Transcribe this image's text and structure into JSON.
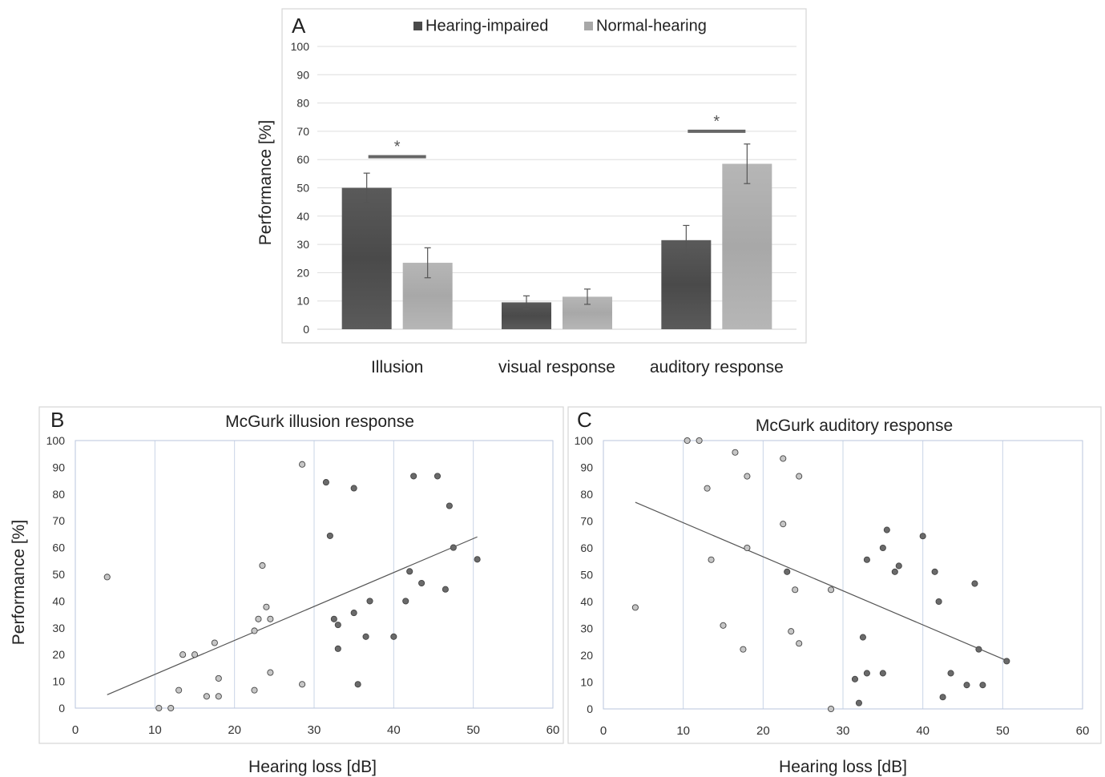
{
  "chart_data": [
    {
      "panel": "A",
      "type": "bar",
      "ylabel": "Performance [%]",
      "ylim": [
        0,
        100
      ],
      "yticks": [
        0,
        10,
        20,
        30,
        40,
        50,
        60,
        70,
        80,
        90,
        100
      ],
      "categories": [
        "Illusion",
        "visual response",
        "auditory response"
      ],
      "legend_position": "top",
      "series": [
        {
          "name": "Hearing-impaired",
          "color": "#4a4a4a",
          "values": [
            50,
            9.5,
            31.5
          ],
          "errors": [
            5.2,
            2.3,
            5.2
          ]
        },
        {
          "name": "Normal-hearing",
          "color": "#a8a8a8",
          "values": [
            23.5,
            11.5,
            58.5
          ],
          "errors": [
            5.3,
            2.7,
            7.0
          ]
        }
      ],
      "significance": [
        {
          "category": "Illusion",
          "label": "*",
          "y": 61
        },
        {
          "category": "auditory response",
          "label": "*",
          "y": 70
        }
      ]
    },
    {
      "panel": "B",
      "type": "scatter",
      "title": "McGurk illusion response",
      "xlabel": "Hearing loss [dB]",
      "ylabel": "Performance [%]",
      "xlim": [
        0,
        60
      ],
      "ylim": [
        0,
        100
      ],
      "xticks": [
        0,
        10,
        20,
        30,
        40,
        50,
        60
      ],
      "yticks": [
        0,
        10,
        20,
        30,
        40,
        50,
        60,
        70,
        80,
        90,
        100
      ],
      "grid": true,
      "trendline": {
        "x": [
          4,
          50.5
        ],
        "y": [
          5,
          64
        ]
      },
      "series": [
        {
          "group": "light",
          "color": "#c6c6c6",
          "points": [
            [
              4,
              49
            ],
            [
              10.5,
              0
            ],
            [
              12,
              0
            ],
            [
              13,
              6.7
            ],
            [
              13.5,
              20
            ],
            [
              15,
              20
            ],
            [
              16.5,
              4.4
            ],
            [
              17.5,
              24.4
            ],
            [
              18,
              11.1
            ],
            [
              18,
              4.4
            ],
            [
              22.5,
              28.9
            ],
            [
              22.5,
              6.7
            ],
            [
              23,
              33.3
            ],
            [
              23.5,
              53.3
            ],
            [
              24,
              37.8
            ],
            [
              24.5,
              33.3
            ],
            [
              24.5,
              13.3
            ],
            [
              28.5,
              91.1
            ],
            [
              28.5,
              8.9
            ]
          ]
        },
        {
          "group": "dark",
          "color": "#6a6a6a",
          "points": [
            [
              31.5,
              84.4
            ],
            [
              32,
              64.4
            ],
            [
              32.5,
              33.3
            ],
            [
              33,
              31.1
            ],
            [
              33,
              22.2
            ],
            [
              35,
              82.2
            ],
            [
              35,
              35.6
            ],
            [
              35.5,
              8.9
            ],
            [
              36.5,
              26.7
            ],
            [
              37,
              40
            ],
            [
              40,
              26.7
            ],
            [
              41.5,
              40
            ],
            [
              42,
              51.1
            ],
            [
              42.5,
              86.7
            ],
            [
              43.5,
              46.7
            ],
            [
              45.5,
              86.7
            ],
            [
              46.5,
              44.4
            ],
            [
              47,
              75.6
            ],
            [
              47.5,
              60
            ],
            [
              50.5,
              55.6
            ]
          ]
        }
      ]
    },
    {
      "panel": "C",
      "type": "scatter",
      "title": "McGurk auditory response",
      "xlabel": "Hearing loss [dB]",
      "xlim": [
        0,
        60
      ],
      "ylim": [
        0,
        100
      ],
      "xticks": [
        0,
        10,
        20,
        30,
        40,
        50,
        60
      ],
      "yticks": [
        0,
        10,
        20,
        30,
        40,
        50,
        60,
        70,
        80,
        90,
        100
      ],
      "grid": true,
      "trendline": {
        "x": [
          4,
          50.5
        ],
        "y": [
          77,
          18
        ]
      },
      "series": [
        {
          "group": "light",
          "color": "#c6c6c6",
          "points": [
            [
              4,
              37.8
            ],
            [
              10.5,
              100
            ],
            [
              12,
              100
            ],
            [
              13,
              82.2
            ],
            [
              13.5,
              55.6
            ],
            [
              15,
              31.1
            ],
            [
              16.5,
              95.6
            ],
            [
              17.5,
              22.2
            ],
            [
              18,
              86.7
            ],
            [
              18,
              60
            ],
            [
              22.5,
              93.3
            ],
            [
              22.5,
              68.9
            ],
            [
              23.5,
              28.9
            ],
            [
              24,
              44.4
            ],
            [
              24.5,
              86.7
            ],
            [
              24.5,
              24.4
            ],
            [
              28.5,
              44.4
            ],
            [
              28.5,
              0
            ]
          ]
        },
        {
          "group": "dark",
          "color": "#6a6a6a",
          "points": [
            [
              23,
              51.1
            ],
            [
              31.5,
              11.1
            ],
            [
              32,
              2.2
            ],
            [
              32.5,
              26.7
            ],
            [
              33,
              55.6
            ],
            [
              33,
              13.3
            ],
            [
              35,
              60
            ],
            [
              35,
              13.3
            ],
            [
              35.5,
              66.7
            ],
            [
              36.5,
              51.1
            ],
            [
              37,
              53.3
            ],
            [
              40,
              64.4
            ],
            [
              41.5,
              51.1
            ],
            [
              42,
              40
            ],
            [
              42.5,
              4.4
            ],
            [
              43.5,
              13.3
            ],
            [
              45.5,
              8.9
            ],
            [
              46.5,
              46.7
            ],
            [
              47,
              22.2
            ],
            [
              47.5,
              8.9
            ],
            [
              50.5,
              17.8
            ]
          ]
        }
      ]
    }
  ]
}
